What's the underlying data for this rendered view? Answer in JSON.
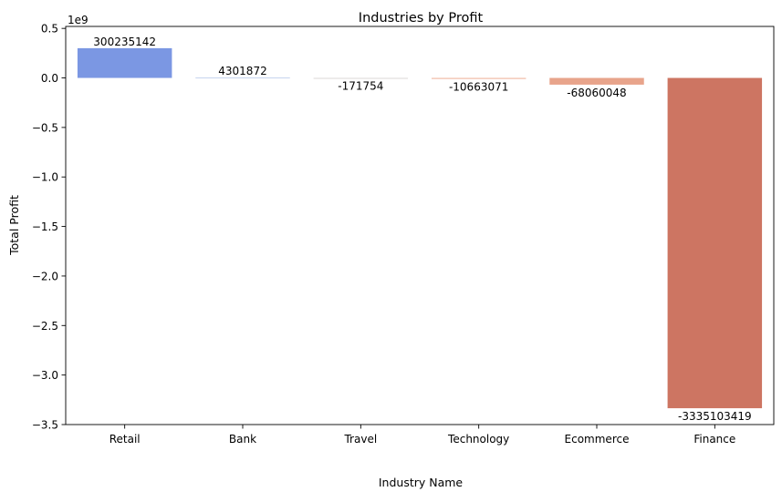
{
  "chart_data": {
    "type": "bar",
    "title": "Industries by Profit",
    "xlabel": "Industry Name",
    "ylabel": "Total Profit",
    "y_scale_label": "1e9",
    "y_multiplier": 1000000000,
    "ylim": [
      -3.5,
      0.52
    ],
    "yticks": [
      0.5,
      0.0,
      -0.5,
      -1.0,
      -1.5,
      -2.0,
      -2.5,
      -3.0,
      -3.5
    ],
    "ytick_labels": [
      "0.5",
      "0.0",
      "−0.5",
      "−1.0",
      "−1.5",
      "−2.0",
      "−2.5",
      "−3.0",
      "−3.5"
    ],
    "categories": [
      "Retail",
      "Bank",
      "Travel",
      "Technology",
      "Ecommerce",
      "Finance"
    ],
    "values": [
      300235142,
      4301872,
      -171754,
      -10663071,
      -68060048,
      -3335103419
    ],
    "data_labels": [
      "300235142",
      "4301872",
      "-171754",
      "-10663071",
      "-68060048",
      "-3335103419"
    ],
    "colors": [
      "#7b97e3",
      "#c5d3ee",
      "#ddd9d7",
      "#f0b9a3",
      "#e8a48b",
      "#cd7562"
    ],
    "grid": false,
    "legend": "none"
  }
}
